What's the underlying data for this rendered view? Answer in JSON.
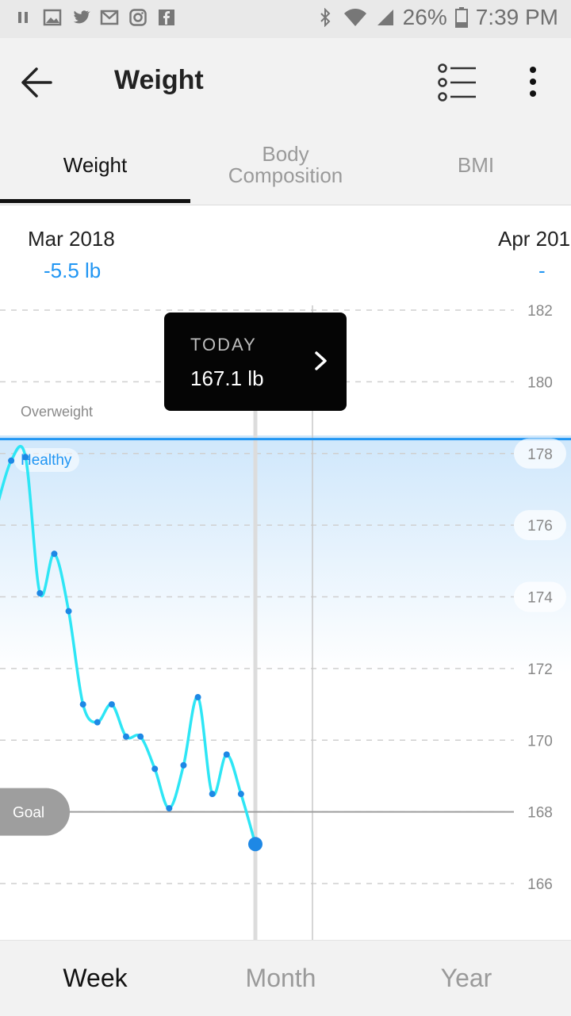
{
  "status_bar": {
    "battery": "26%",
    "time": "7:39 PM",
    "left_icons": [
      "pause-icon",
      "gallery-icon",
      "twitter-icon",
      "gmail-icon",
      "instagram-icon",
      "facebook-icon"
    ],
    "right_icons": [
      "bluetooth-icon",
      "wifi-icon",
      "signal-icon",
      "battery-icon"
    ]
  },
  "app_bar": {
    "title": "Weight"
  },
  "tabs": [
    {
      "label": "Weight",
      "active": true
    },
    {
      "label": "Body Composition",
      "active": false
    },
    {
      "label": "BMI",
      "active": false
    }
  ],
  "months": [
    {
      "label": "Mar 2018",
      "delta": "-5.5 lb"
    },
    {
      "label": "Apr 201",
      "delta": "-"
    }
  ],
  "tooltip": {
    "label": "TODAY",
    "value": "167.1 lb"
  },
  "chart_data": {
    "type": "line",
    "unit": "lb",
    "y_ticks": [
      "182",
      "180",
      "178",
      "176",
      "174",
      "172",
      "170",
      "168",
      "166"
    ],
    "ylim": [
      165,
      182.5
    ],
    "zones": [
      {
        "label": "Overweight"
      },
      {
        "label": "Healthy",
        "upper": 178.4
      }
    ],
    "goal": {
      "label": "Goal",
      "value": 168
    },
    "series": [
      {
        "values": [
          176.5,
          177.8,
          177.9,
          174.1,
          175.2,
          173.6,
          171.0,
          170.5,
          171.0,
          170.1,
          170.1,
          169.2,
          168.1,
          169.3,
          171.2,
          168.5,
          169.6,
          168.5,
          167.1
        ]
      }
    ],
    "today_value": 167.1,
    "colors": {
      "line": "#2ee6f5",
      "point": "#1e88e5",
      "zone_line": "#2196f3",
      "grid": "#cfcfcf"
    }
  },
  "ranges": [
    {
      "label": "Week",
      "active": true
    },
    {
      "label": "Month",
      "active": false
    },
    {
      "label": "Year",
      "active": false
    }
  ]
}
